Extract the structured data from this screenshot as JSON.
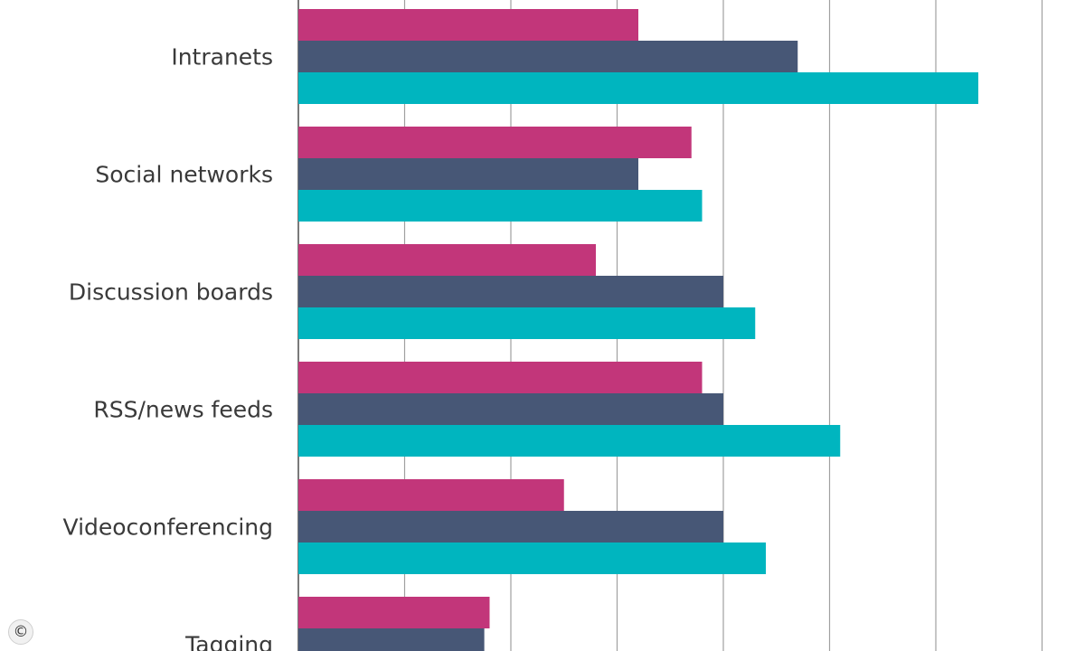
{
  "chart_data": {
    "type": "bar",
    "orientation": "horizontal",
    "categories": [
      "Intranets",
      "Social networks",
      "Discussion boards",
      "RSS/news feeds",
      "Videoconferencing",
      "Tagging"
    ],
    "series": [
      {
        "color": "#c2367a",
        "values": [
          32,
          37,
          28,
          38,
          25,
          18
        ]
      },
      {
        "color": "#475776",
        "values": [
          47,
          32,
          40,
          40,
          40,
          17.5
        ]
      },
      {
        "color": "#00b5bf",
        "values": [
          64,
          38,
          43,
          51,
          44,
          null
        ]
      }
    ],
    "xlim": [
      0,
      70
    ],
    "x_gridline_step": 10,
    "grid": true,
    "legend": "none"
  },
  "watermark": {
    "symbol": "©"
  }
}
